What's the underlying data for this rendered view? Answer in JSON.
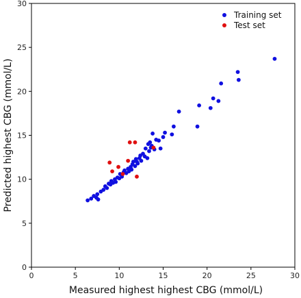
{
  "chart_data": {
    "type": "scatter",
    "xlabel": "Measured highest highest CBG (mmol/L)",
    "ylabel": "Predicted highest CBG (mmol/L)",
    "xlim": [
      0,
      30
    ],
    "ylim": [
      0,
      30
    ],
    "xticks": [
      0,
      5,
      10,
      15,
      20,
      25,
      30
    ],
    "yticks": [
      0,
      5,
      10,
      15,
      20,
      25,
      30
    ],
    "grid": false,
    "legend_position": "top-right",
    "series": [
      {
        "name": "Training set",
        "color": "#1010e0",
        "points": [
          [
            6.4,
            7.6
          ],
          [
            6.8,
            7.8
          ],
          [
            7.1,
            8.1
          ],
          [
            7.4,
            7.9
          ],
          [
            7.5,
            8.3
          ],
          [
            7.6,
            7.7
          ],
          [
            7.9,
            8.6
          ],
          [
            8.2,
            8.8
          ],
          [
            8.4,
            9.2
          ],
          [
            8.6,
            9.0
          ],
          [
            8.8,
            9.5
          ],
          [
            9.0,
            9.4
          ],
          [
            9.1,
            9.8
          ],
          [
            9.3,
            9.6
          ],
          [
            9.5,
            10.0
          ],
          [
            9.6,
            9.7
          ],
          [
            9.8,
            10.2
          ],
          [
            10.0,
            10.1
          ],
          [
            10.1,
            10.6
          ],
          [
            10.3,
            10.3
          ],
          [
            10.5,
            10.8
          ],
          [
            10.6,
            11.0
          ],
          [
            10.8,
            10.7
          ],
          [
            11.0,
            11.2
          ],
          [
            11.1,
            10.9
          ],
          [
            11.3,
            11.4
          ],
          [
            11.4,
            11.1
          ],
          [
            11.5,
            11.7
          ],
          [
            11.6,
            12.0
          ],
          [
            11.8,
            11.5
          ],
          [
            11.9,
            12.3
          ],
          [
            12.0,
            12.0
          ],
          [
            12.1,
            11.8
          ],
          [
            12.3,
            12.4
          ],
          [
            12.4,
            12.7
          ],
          [
            12.5,
            12.1
          ],
          [
            12.7,
            12.9
          ],
          [
            12.9,
            12.6
          ],
          [
            13.0,
            13.5
          ],
          [
            13.2,
            12.4
          ],
          [
            13.3,
            14.0
          ],
          [
            13.4,
            13.2
          ],
          [
            13.5,
            14.2
          ],
          [
            13.6,
            13.6
          ],
          [
            13.7,
            13.8
          ],
          [
            13.8,
            15.2
          ],
          [
            14.0,
            13.4
          ],
          [
            14.2,
            14.5
          ],
          [
            14.5,
            14.4
          ],
          [
            14.7,
            13.5
          ],
          [
            15.0,
            14.8
          ],
          [
            15.2,
            15.3
          ],
          [
            16.0,
            15.1
          ],
          [
            16.2,
            16.0
          ],
          [
            16.8,
            17.7
          ],
          [
            18.9,
            16.0
          ],
          [
            19.1,
            18.4
          ],
          [
            20.4,
            18.1
          ],
          [
            20.7,
            19.2
          ],
          [
            21.3,
            18.9
          ],
          [
            21.6,
            20.9
          ],
          [
            23.5,
            22.2
          ],
          [
            23.6,
            21.3
          ],
          [
            27.7,
            23.7
          ]
        ]
      },
      {
        "name": "Test set",
        "color": "#e01010",
        "points": [
          [
            8.9,
            11.9
          ],
          [
            9.2,
            10.9
          ],
          [
            9.9,
            11.4
          ],
          [
            10.4,
            10.6
          ],
          [
            11.0,
            12.1
          ],
          [
            11.2,
            14.2
          ],
          [
            11.8,
            14.2
          ],
          [
            12.0,
            10.3
          ],
          [
            13.9,
            13.6
          ]
        ]
      }
    ]
  }
}
